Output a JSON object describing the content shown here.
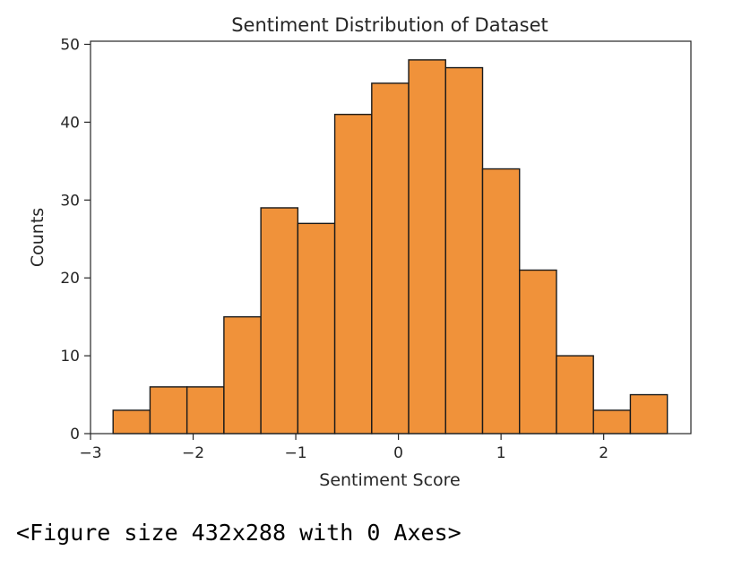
{
  "chart_data": {
    "type": "bar",
    "title": "Sentiment Distribution of Dataset",
    "xlabel": "Sentiment Score",
    "ylabel": "Counts",
    "bin_edges": [
      -2.78,
      -2.42,
      -2.06,
      -1.7,
      -1.34,
      -0.98,
      -0.62,
      -0.26,
      0.1,
      0.46,
      0.82,
      1.18,
      1.54,
      1.9,
      2.26,
      2.62
    ],
    "values": [
      3,
      6,
      6,
      15,
      29,
      27,
      41,
      45,
      48,
      47,
      34,
      21,
      10,
      3,
      5
    ],
    "xlim": [
      -3.0,
      2.85
    ],
    "ylim": [
      0,
      50.4
    ],
    "xticks": [
      -3,
      -2,
      -1,
      0,
      1,
      2
    ],
    "xtick_labels": [
      "−3",
      "−2",
      "−1",
      "0",
      "1",
      "2"
    ],
    "yticks": [
      0,
      10,
      20,
      30,
      40,
      50
    ],
    "ytick_labels": [
      "0",
      "10",
      "20",
      "30",
      "40",
      "50"
    ],
    "grid": false,
    "bar_color": "#F0923A",
    "edge_color": "#1a1a1a"
  },
  "caption": "<Figure size 432x288 with 0 Axes>"
}
